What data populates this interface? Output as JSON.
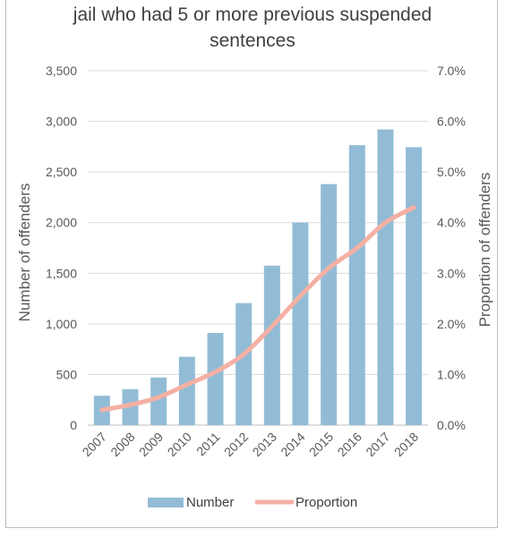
{
  "chart_data": {
    "type": "bar",
    "title_lines": [
      "jail who had 5 or more previous suspended",
      "sentences"
    ],
    "categories": [
      "2007",
      "2008",
      "2009",
      "2010",
      "2011",
      "2012",
      "2013",
      "2014",
      "2015",
      "2016",
      "2017",
      "2018"
    ],
    "series": [
      {
        "name": "Number",
        "type": "bar",
        "axis": "left",
        "color": "#92bcd6",
        "values": [
          290,
          355,
          470,
          675,
          910,
          1205,
          1575,
          2000,
          2380,
          2765,
          2920,
          2745
        ]
      },
      {
        "name": "Proportion",
        "type": "line",
        "axis": "right",
        "color": "#f4b0a3",
        "values": [
          0.3,
          0.4,
          0.55,
          0.8,
          1.05,
          1.4,
          1.95,
          2.55,
          3.1,
          3.5,
          4.0,
          4.3
        ]
      }
    ],
    "ylabel": "Number of offenders",
    "y2label": "Proportion of offenders",
    "ylim": [
      0,
      3500
    ],
    "y2lim": [
      0,
      7
    ],
    "yticks": [
      "0",
      "500",
      "1,000",
      "1,500",
      "2,000",
      "2,500",
      "3,000",
      "3,500"
    ],
    "y2ticks": [
      "0.0%",
      "1.0%",
      "2.0%",
      "3.0%",
      "4.0%",
      "5.0%",
      "6.0%",
      "7.0%"
    ],
    "grid": true,
    "legend": "bottom"
  }
}
